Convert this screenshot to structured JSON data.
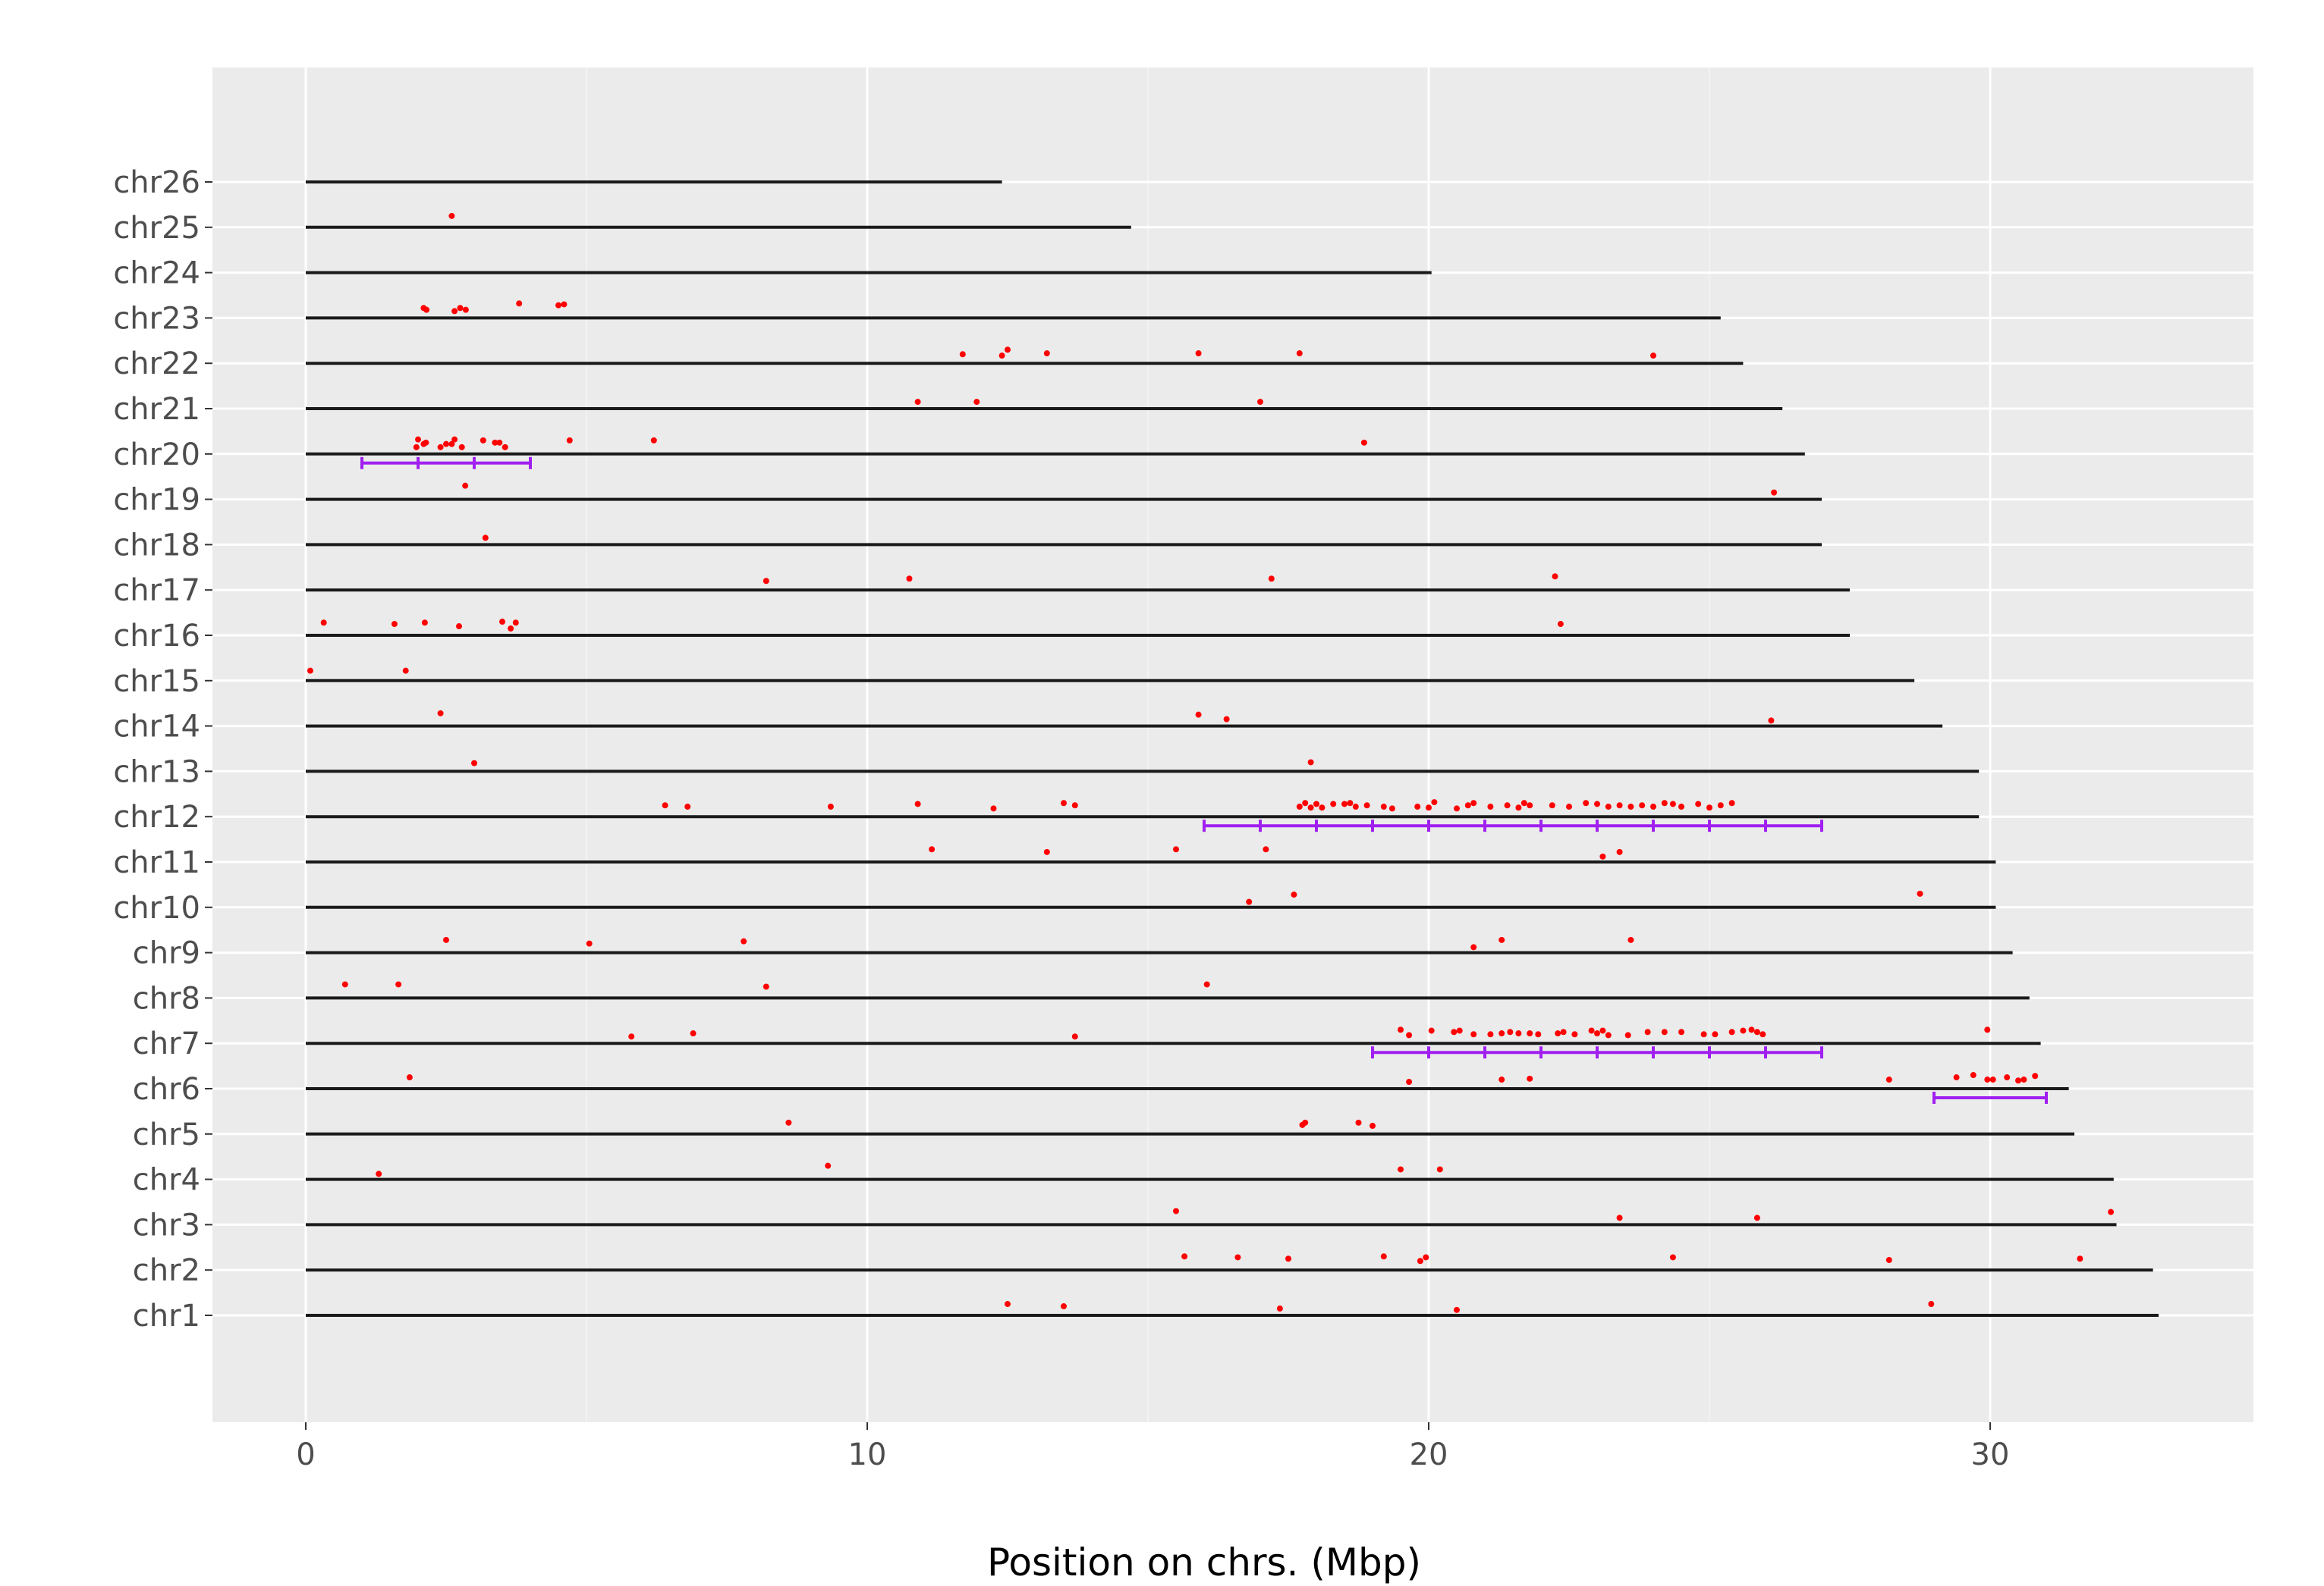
{
  "chart_data": {
    "type": "scatter",
    "title": "",
    "xlabel": "Position on chrs. (Mbp)",
    "ylabel": "",
    "xlim": [
      -1.65,
      34.7
    ],
    "xticks": [
      0,
      10,
      20,
      30
    ],
    "xtick_labels": [
      "0",
      "10",
      "20",
      "30"
    ],
    "grid": true,
    "legend": "none",
    "colors": {
      "panel_bg": "#ebebeb",
      "grid": "#ffffff",
      "chromosome_line": "#1a1a1a",
      "point": "#ff0000",
      "interval": "#a020f0",
      "tick_text": "#4d4d4d"
    },
    "chromosomes": [
      {
        "name": "chr26",
        "length": 12.4
      },
      {
        "name": "chr25",
        "length": 14.7
      },
      {
        "name": "chr24",
        "length": 20.05
      },
      {
        "name": "chr23",
        "length": 25.2
      },
      {
        "name": "chr22",
        "length": 25.6
      },
      {
        "name": "chr21",
        "length": 26.3
      },
      {
        "name": "chr20",
        "length": 26.7
      },
      {
        "name": "chr19",
        "length": 27.0
      },
      {
        "name": "chr18",
        "length": 27.0
      },
      {
        "name": "chr17",
        "length": 27.5
      },
      {
        "name": "chr16",
        "length": 27.5
      },
      {
        "name": "chr15",
        "length": 28.65
      },
      {
        "name": "chr14",
        "length": 29.15
      },
      {
        "name": "chr13",
        "length": 29.8
      },
      {
        "name": "chr12",
        "length": 29.8
      },
      {
        "name": "chr11",
        "length": 30.1
      },
      {
        "name": "chr10",
        "length": 30.1
      },
      {
        "name": "chr9",
        "length": 30.4
      },
      {
        "name": "chr8",
        "length": 30.7
      },
      {
        "name": "chr7",
        "length": 30.9
      },
      {
        "name": "chr6",
        "length": 31.4
      },
      {
        "name": "chr5",
        "length": 31.5
      },
      {
        "name": "chr4",
        "length": 32.2
      },
      {
        "name": "chr3",
        "length": 32.25
      },
      {
        "name": "chr2",
        "length": 32.9
      },
      {
        "name": "chr1",
        "length": 33.0
      }
    ],
    "points": [
      {
        "chr": "chr25",
        "x": 2.6,
        "dy": 0.25
      },
      {
        "chr": "chr23",
        "x": 2.1,
        "dy": 0.22
      },
      {
        "chr": "chr23",
        "x": 2.15,
        "dy": 0.18
      },
      {
        "chr": "chr23",
        "x": 2.65,
        "dy": 0.15
      },
      {
        "chr": "chr23",
        "x": 2.75,
        "dy": 0.22
      },
      {
        "chr": "chr23",
        "x": 2.85,
        "dy": 0.18
      },
      {
        "chr": "chr23",
        "x": 3.8,
        "dy": 0.32
      },
      {
        "chr": "chr23",
        "x": 4.5,
        "dy": 0.28
      },
      {
        "chr": "chr23",
        "x": 4.6,
        "dy": 0.3
      },
      {
        "chr": "chr22",
        "x": 11.7,
        "dy": 0.2
      },
      {
        "chr": "chr22",
        "x": 12.4,
        "dy": 0.17
      },
      {
        "chr": "chr22",
        "x": 12.5,
        "dy": 0.3
      },
      {
        "chr": "chr22",
        "x": 13.2,
        "dy": 0.22
      },
      {
        "chr": "chr22",
        "x": 15.9,
        "dy": 0.22
      },
      {
        "chr": "chr22",
        "x": 17.7,
        "dy": 0.22
      },
      {
        "chr": "chr22",
        "x": 24.0,
        "dy": 0.17
      },
      {
        "chr": "chr21",
        "x": 10.9,
        "dy": 0.15
      },
      {
        "chr": "chr21",
        "x": 11.95,
        "dy": 0.15
      },
      {
        "chr": "chr21",
        "x": 17.0,
        "dy": 0.15
      },
      {
        "chr": "chr20",
        "x": 1.97,
        "dy": 0.15
      },
      {
        "chr": "chr20",
        "x": 2.0,
        "dy": 0.32
      },
      {
        "chr": "chr20",
        "x": 2.1,
        "dy": 0.22
      },
      {
        "chr": "chr20",
        "x": 2.14,
        "dy": 0.25
      },
      {
        "chr": "chr20",
        "x": 2.4,
        "dy": 0.15
      },
      {
        "chr": "chr20",
        "x": 2.5,
        "dy": 0.22
      },
      {
        "chr": "chr20",
        "x": 2.6,
        "dy": 0.22
      },
      {
        "chr": "chr20",
        "x": 2.65,
        "dy": 0.32
      },
      {
        "chr": "chr20",
        "x": 2.78,
        "dy": 0.15
      },
      {
        "chr": "chr20",
        "x": 3.16,
        "dy": 0.3
      },
      {
        "chr": "chr20",
        "x": 3.37,
        "dy": 0.25
      },
      {
        "chr": "chr20",
        "x": 3.45,
        "dy": 0.25
      },
      {
        "chr": "chr20",
        "x": 3.55,
        "dy": 0.15
      },
      {
        "chr": "chr20",
        "x": 4.7,
        "dy": 0.3
      },
      {
        "chr": "chr20",
        "x": 6.2,
        "dy": 0.3
      },
      {
        "chr": "chr20",
        "x": 18.85,
        "dy": 0.25
      },
      {
        "chr": "chr19",
        "x": 2.84,
        "dy": 0.3
      },
      {
        "chr": "chr19",
        "x": 26.15,
        "dy": 0.15
      },
      {
        "chr": "chr18",
        "x": 3.2,
        "dy": 0.15
      },
      {
        "chr": "chr17",
        "x": 8.2,
        "dy": 0.2
      },
      {
        "chr": "chr17",
        "x": 10.75,
        "dy": 0.25
      },
      {
        "chr": "chr17",
        "x": 17.2,
        "dy": 0.25
      },
      {
        "chr": "chr17",
        "x": 22.25,
        "dy": 0.3
      },
      {
        "chr": "chr16",
        "x": 0.32,
        "dy": 0.28
      },
      {
        "chr": "chr16",
        "x": 1.58,
        "dy": 0.25
      },
      {
        "chr": "chr16",
        "x": 2.12,
        "dy": 0.28
      },
      {
        "chr": "chr16",
        "x": 2.73,
        "dy": 0.2
      },
      {
        "chr": "chr16",
        "x": 3.5,
        "dy": 0.3
      },
      {
        "chr": "chr16",
        "x": 3.65,
        "dy": 0.15
      },
      {
        "chr": "chr16",
        "x": 3.74,
        "dy": 0.28
      },
      {
        "chr": "chr16",
        "x": 22.35,
        "dy": 0.25
      },
      {
        "chr": "chr15",
        "x": 0.08,
        "dy": 0.22
      },
      {
        "chr": "chr15",
        "x": 1.78,
        "dy": 0.22
      },
      {
        "chr": "chr14",
        "x": 2.4,
        "dy": 0.28
      },
      {
        "chr": "chr14",
        "x": 15.9,
        "dy": 0.25
      },
      {
        "chr": "chr14",
        "x": 16.4,
        "dy": 0.15
      },
      {
        "chr": "chr14",
        "x": 26.1,
        "dy": 0.12
      },
      {
        "chr": "chr13",
        "x": 3.0,
        "dy": 0.18
      },
      {
        "chr": "chr13",
        "x": 17.9,
        "dy": 0.2
      },
      {
        "chr": "chr12",
        "x": 6.4,
        "dy": 0.25
      },
      {
        "chr": "chr12",
        "x": 6.8,
        "dy": 0.22
      },
      {
        "chr": "chr12",
        "x": 9.35,
        "dy": 0.22
      },
      {
        "chr": "chr12",
        "x": 10.9,
        "dy": 0.28
      },
      {
        "chr": "chr12",
        "x": 12.25,
        "dy": 0.18
      },
      {
        "chr": "chr12",
        "x": 13.5,
        "dy": 0.3
      },
      {
        "chr": "chr12",
        "x": 13.7,
        "dy": 0.25
      },
      {
        "chr": "chr12",
        "x": 17.7,
        "dy": 0.22
      },
      {
        "chr": "chr12",
        "x": 17.8,
        "dy": 0.3
      },
      {
        "chr": "chr12",
        "x": 17.9,
        "dy": 0.2
      },
      {
        "chr": "chr12",
        "x": 18.0,
        "dy": 0.28
      },
      {
        "chr": "chr12",
        "x": 18.1,
        "dy": 0.2
      },
      {
        "chr": "chr12",
        "x": 18.3,
        "dy": 0.28
      },
      {
        "chr": "chr12",
        "x": 18.5,
        "dy": 0.28
      },
      {
        "chr": "chr12",
        "x": 18.6,
        "dy": 0.3
      },
      {
        "chr": "chr12",
        "x": 18.7,
        "dy": 0.22
      },
      {
        "chr": "chr12",
        "x": 18.9,
        "dy": 0.25
      },
      {
        "chr": "chr12",
        "x": 19.2,
        "dy": 0.22
      },
      {
        "chr": "chr12",
        "x": 19.35,
        "dy": 0.18
      },
      {
        "chr": "chr12",
        "x": 19.8,
        "dy": 0.22
      },
      {
        "chr": "chr12",
        "x": 20.0,
        "dy": 0.2
      },
      {
        "chr": "chr12",
        "x": 20.1,
        "dy": 0.32
      },
      {
        "chr": "chr12",
        "x": 20.5,
        "dy": 0.18
      },
      {
        "chr": "chr12",
        "x": 20.7,
        "dy": 0.25
      },
      {
        "chr": "chr12",
        "x": 20.8,
        "dy": 0.3
      },
      {
        "chr": "chr12",
        "x": 21.1,
        "dy": 0.22
      },
      {
        "chr": "chr12",
        "x": 21.4,
        "dy": 0.25
      },
      {
        "chr": "chr12",
        "x": 21.6,
        "dy": 0.2
      },
      {
        "chr": "chr12",
        "x": 21.7,
        "dy": 0.3
      },
      {
        "chr": "chr12",
        "x": 21.8,
        "dy": 0.25
      },
      {
        "chr": "chr12",
        "x": 22.2,
        "dy": 0.25
      },
      {
        "chr": "chr12",
        "x": 22.5,
        "dy": 0.22
      },
      {
        "chr": "chr12",
        "x": 22.8,
        "dy": 0.3
      },
      {
        "chr": "chr12",
        "x": 23.0,
        "dy": 0.28
      },
      {
        "chr": "chr12",
        "x": 23.2,
        "dy": 0.22
      },
      {
        "chr": "chr12",
        "x": 23.4,
        "dy": 0.25
      },
      {
        "chr": "chr12",
        "x": 23.6,
        "dy": 0.22
      },
      {
        "chr": "chr12",
        "x": 23.8,
        "dy": 0.25
      },
      {
        "chr": "chr12",
        "x": 24.0,
        "dy": 0.22
      },
      {
        "chr": "chr12",
        "x": 24.2,
        "dy": 0.3
      },
      {
        "chr": "chr12",
        "x": 24.35,
        "dy": 0.28
      },
      {
        "chr": "chr12",
        "x": 24.5,
        "dy": 0.22
      },
      {
        "chr": "chr12",
        "x": 24.8,
        "dy": 0.28
      },
      {
        "chr": "chr12",
        "x": 25.0,
        "dy": 0.2
      },
      {
        "chr": "chr12",
        "x": 25.2,
        "dy": 0.25
      },
      {
        "chr": "chr12",
        "x": 25.4,
        "dy": 0.3
      },
      {
        "chr": "chr11",
        "x": 11.15,
        "dy": 0.28
      },
      {
        "chr": "chr11",
        "x": 13.2,
        "dy": 0.22
      },
      {
        "chr": "chr11",
        "x": 15.5,
        "dy": 0.28
      },
      {
        "chr": "chr11",
        "x": 17.1,
        "dy": 0.28
      },
      {
        "chr": "chr11",
        "x": 23.1,
        "dy": 0.12
      },
      {
        "chr": "chr11",
        "x": 23.4,
        "dy": 0.22
      },
      {
        "chr": "chr10",
        "x": 16.8,
        "dy": 0.12
      },
      {
        "chr": "chr10",
        "x": 17.6,
        "dy": 0.28
      },
      {
        "chr": "chr10",
        "x": 28.75,
        "dy": 0.3
      },
      {
        "chr": "chr9",
        "x": 2.5,
        "dy": 0.28
      },
      {
        "chr": "chr9",
        "x": 5.05,
        "dy": 0.2
      },
      {
        "chr": "chr9",
        "x": 7.8,
        "dy": 0.25
      },
      {
        "chr": "chr9",
        "x": 20.8,
        "dy": 0.12
      },
      {
        "chr": "chr9",
        "x": 21.3,
        "dy": 0.28
      },
      {
        "chr": "chr9",
        "x": 23.6,
        "dy": 0.28
      },
      {
        "chr": "chr8",
        "x": 0.7,
        "dy": 0.3
      },
      {
        "chr": "chr8",
        "x": 1.65,
        "dy": 0.3
      },
      {
        "chr": "chr8",
        "x": 8.2,
        "dy": 0.25
      },
      {
        "chr": "chr8",
        "x": 16.05,
        "dy": 0.3
      },
      {
        "chr": "chr7",
        "x": 5.8,
        "dy": 0.15
      },
      {
        "chr": "chr7",
        "x": 6.9,
        "dy": 0.22
      },
      {
        "chr": "chr7",
        "x": 13.7,
        "dy": 0.15
      },
      {
        "chr": "chr7",
        "x": 19.5,
        "dy": 0.3
      },
      {
        "chr": "chr7",
        "x": 19.65,
        "dy": 0.18
      },
      {
        "chr": "chr7",
        "x": 20.05,
        "dy": 0.28
      },
      {
        "chr": "chr7",
        "x": 20.45,
        "dy": 0.25
      },
      {
        "chr": "chr7",
        "x": 20.55,
        "dy": 0.28
      },
      {
        "chr": "chr7",
        "x": 20.8,
        "dy": 0.2
      },
      {
        "chr": "chr7",
        "x": 21.1,
        "dy": 0.2
      },
      {
        "chr": "chr7",
        "x": 21.3,
        "dy": 0.22
      },
      {
        "chr": "chr7",
        "x": 21.45,
        "dy": 0.25
      },
      {
        "chr": "chr7",
        "x": 21.6,
        "dy": 0.22
      },
      {
        "chr": "chr7",
        "x": 21.8,
        "dy": 0.22
      },
      {
        "chr": "chr7",
        "x": 21.95,
        "dy": 0.2
      },
      {
        "chr": "chr7",
        "x": 22.3,
        "dy": 0.22
      },
      {
        "chr": "chr7",
        "x": 22.4,
        "dy": 0.25
      },
      {
        "chr": "chr7",
        "x": 22.6,
        "dy": 0.2
      },
      {
        "chr": "chr7",
        "x": 22.9,
        "dy": 0.28
      },
      {
        "chr": "chr7",
        "x": 23.0,
        "dy": 0.22
      },
      {
        "chr": "chr7",
        "x": 23.1,
        "dy": 0.28
      },
      {
        "chr": "chr7",
        "x": 23.2,
        "dy": 0.18
      },
      {
        "chr": "chr7",
        "x": 23.55,
        "dy": 0.18
      },
      {
        "chr": "chr7",
        "x": 23.9,
        "dy": 0.25
      },
      {
        "chr": "chr7",
        "x": 24.2,
        "dy": 0.25
      },
      {
        "chr": "chr7",
        "x": 24.5,
        "dy": 0.25
      },
      {
        "chr": "chr7",
        "x": 24.9,
        "dy": 0.2
      },
      {
        "chr": "chr7",
        "x": 25.1,
        "dy": 0.2
      },
      {
        "chr": "chr7",
        "x": 25.4,
        "dy": 0.25
      },
      {
        "chr": "chr7",
        "x": 25.6,
        "dy": 0.28
      },
      {
        "chr": "chr7",
        "x": 25.75,
        "dy": 0.3
      },
      {
        "chr": "chr7",
        "x": 25.85,
        "dy": 0.25
      },
      {
        "chr": "chr7",
        "x": 25.95,
        "dy": 0.2
      },
      {
        "chr": "chr7",
        "x": 29.95,
        "dy": 0.3
      },
      {
        "chr": "chr6",
        "x": 1.85,
        "dy": 0.25
      },
      {
        "chr": "chr6",
        "x": 19.65,
        "dy": 0.15
      },
      {
        "chr": "chr6",
        "x": 21.3,
        "dy": 0.2
      },
      {
        "chr": "chr6",
        "x": 21.8,
        "dy": 0.22
      },
      {
        "chr": "chr6",
        "x": 28.2,
        "dy": 0.2
      },
      {
        "chr": "chr6",
        "x": 29.4,
        "dy": 0.25
      },
      {
        "chr": "chr6",
        "x": 29.7,
        "dy": 0.3
      },
      {
        "chr": "chr6",
        "x": 29.95,
        "dy": 0.2
      },
      {
        "chr": "chr6",
        "x": 30.05,
        "dy": 0.2
      },
      {
        "chr": "chr6",
        "x": 30.3,
        "dy": 0.25
      },
      {
        "chr": "chr6",
        "x": 30.5,
        "dy": 0.18
      },
      {
        "chr": "chr6",
        "x": 30.6,
        "dy": 0.2
      },
      {
        "chr": "chr6",
        "x": 30.8,
        "dy": 0.28
      },
      {
        "chr": "chr5",
        "x": 8.6,
        "dy": 0.25
      },
      {
        "chr": "chr5",
        "x": 17.75,
        "dy": 0.2
      },
      {
        "chr": "chr5",
        "x": 17.8,
        "dy": 0.25
      },
      {
        "chr": "chr5",
        "x": 18.75,
        "dy": 0.25
      },
      {
        "chr": "chr5",
        "x": 19.0,
        "dy": 0.18
      },
      {
        "chr": "chr4",
        "x": 1.3,
        "dy": 0.12
      },
      {
        "chr": "chr4",
        "x": 9.3,
        "dy": 0.3
      },
      {
        "chr": "chr4",
        "x": 19.5,
        "dy": 0.22
      },
      {
        "chr": "chr4",
        "x": 20.2,
        "dy": 0.22
      },
      {
        "chr": "chr3",
        "x": 15.5,
        "dy": 0.3
      },
      {
        "chr": "chr3",
        "x": 23.4,
        "dy": 0.15
      },
      {
        "chr": "chr3",
        "x": 25.85,
        "dy": 0.15
      },
      {
        "chr": "chr3",
        "x": 32.15,
        "dy": 0.28
      },
      {
        "chr": "chr2",
        "x": 15.65,
        "dy": 0.3
      },
      {
        "chr": "chr2",
        "x": 16.6,
        "dy": 0.28
      },
      {
        "chr": "chr2",
        "x": 17.5,
        "dy": 0.25
      },
      {
        "chr": "chr2",
        "x": 19.2,
        "dy": 0.3
      },
      {
        "chr": "chr2",
        "x": 19.85,
        "dy": 0.2
      },
      {
        "chr": "chr2",
        "x": 19.95,
        "dy": 0.28
      },
      {
        "chr": "chr2",
        "x": 24.35,
        "dy": 0.28
      },
      {
        "chr": "chr2",
        "x": 28.2,
        "dy": 0.22
      },
      {
        "chr": "chr2",
        "x": 31.6,
        "dy": 0.25
      },
      {
        "chr": "chr1",
        "x": 12.5,
        "dy": 0.25
      },
      {
        "chr": "chr1",
        "x": 13.5,
        "dy": 0.2
      },
      {
        "chr": "chr1",
        "x": 17.35,
        "dy": 0.15
      },
      {
        "chr": "chr1",
        "x": 20.5,
        "dy": 0.12
      },
      {
        "chr": "chr1",
        "x": 28.95,
        "dy": 0.25
      }
    ],
    "intervals": [
      {
        "chr": "chr20",
        "start": 1.0,
        "end": 4.0,
        "ticks": [
          1,
          2,
          3,
          4
        ]
      },
      {
        "chr": "chr12",
        "start": 16.0,
        "end": 27.0,
        "ticks": [
          16,
          17,
          18,
          19,
          20,
          21,
          22,
          23,
          24,
          25,
          26,
          27
        ]
      },
      {
        "chr": "chr7",
        "start": 19.0,
        "end": 27.0,
        "ticks": [
          19,
          20,
          21,
          22,
          23,
          24,
          25,
          26,
          27
        ]
      },
      {
        "chr": "chr6",
        "start": 29.0,
        "end": 31.0,
        "ticks": [
          29,
          31
        ]
      }
    ]
  }
}
